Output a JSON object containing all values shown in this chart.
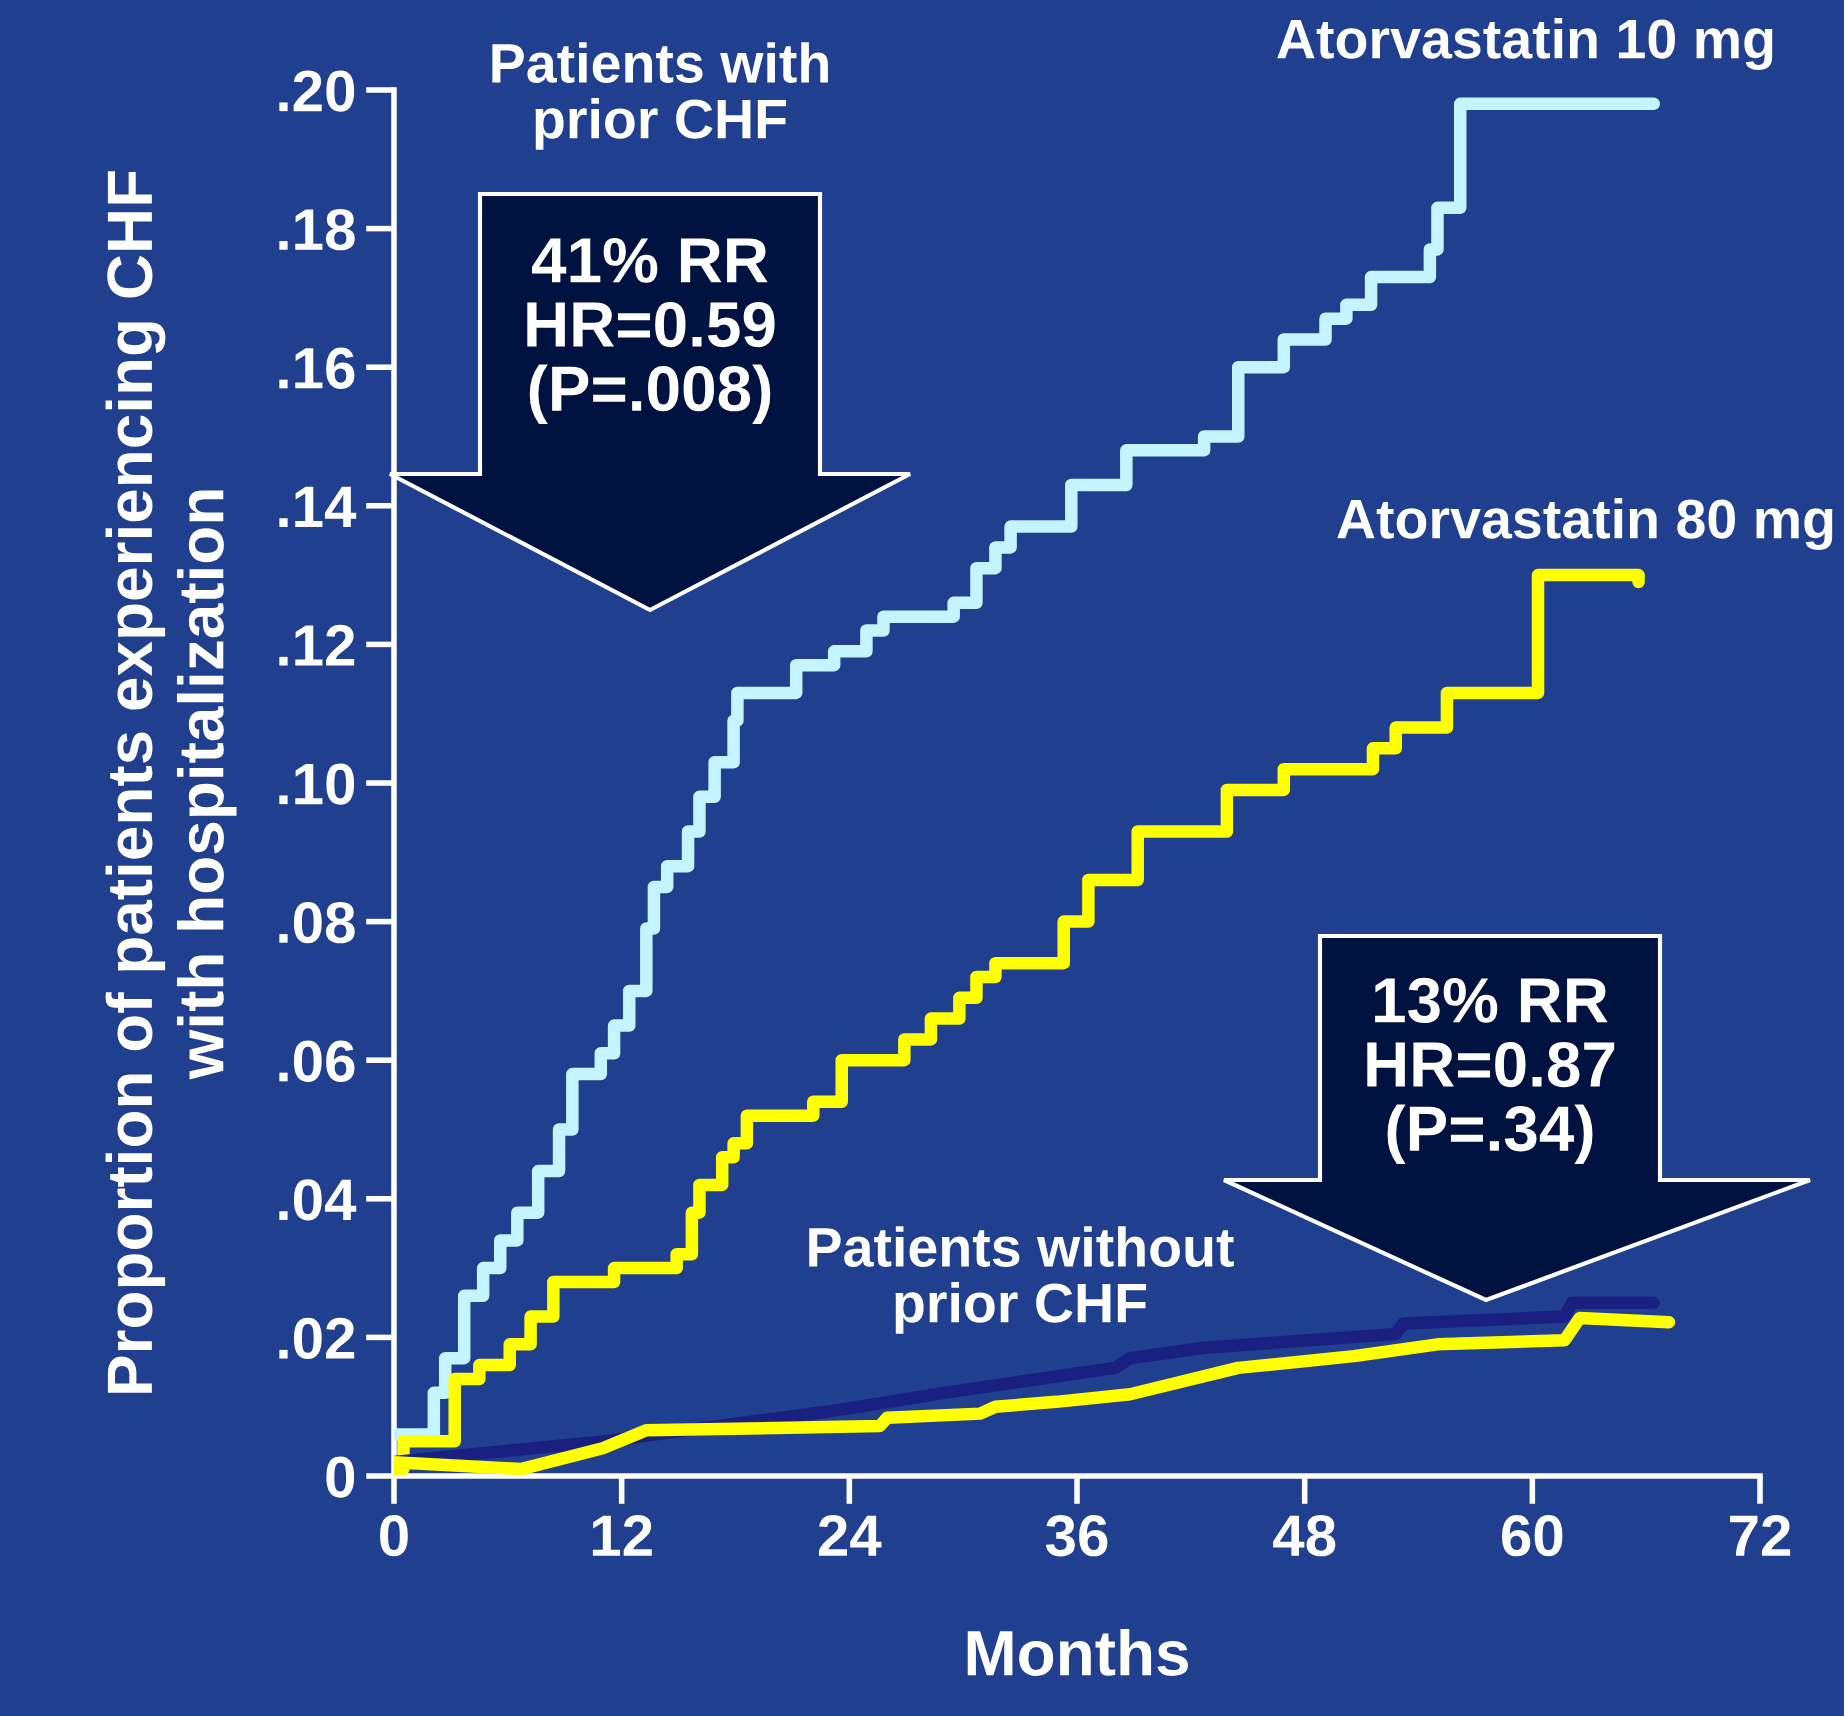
{
  "chart_data": {
    "type": "step",
    "xlabel": "Months",
    "ylabel": "Proportion of patients experiencing CHF\nwith hospitalization",
    "xlim": [
      0,
      72
    ],
    "xticks": [
      0,
      12,
      24,
      36,
      48,
      60,
      72
    ],
    "ylim": [
      0,
      0.2
    ],
    "yticks": [
      {
        "value": 0,
        "label": "0"
      },
      {
        "value": 0.02,
        "label": ".02"
      },
      {
        "value": 0.04,
        "label": ".04"
      },
      {
        "value": 0.06,
        "label": ".06"
      },
      {
        "value": 0.08,
        "label": ".08"
      },
      {
        "value": 0.1,
        "label": ".10"
      },
      {
        "value": 0.12,
        "label": ".12"
      },
      {
        "value": 0.14,
        "label": ".14"
      },
      {
        "value": 0.16,
        "label": ".16"
      },
      {
        "value": 0.18,
        "label": ".18"
      },
      {
        "value": 0.2,
        "label": ".20"
      }
    ],
    "grid": false,
    "legend": false,
    "series": [
      {
        "name": "Atorvastatin 10 mg",
        "color": "#c4f4ff",
        "x": [
          0,
          2.1,
          2.7,
          3.7,
          4.7,
          5.6,
          6.5,
          7.6,
          8.7,
          9.4,
          10.9,
          11.6,
          12.4,
          13.3,
          13.7,
          14.4,
          15.5,
          16.1,
          16.9,
          17.9,
          18.1,
          21.2,
          23.2,
          24.9,
          25.8,
          29.5,
          30.7,
          31.7,
          32.5,
          35.7,
          38.6,
          42.7,
          44.5,
          46.9,
          49.1,
          50.2,
          51.5,
          54.6,
          55.0,
          56.2,
          61.1,
          66.4
        ],
        "values": [
          0.006,
          0.012,
          0.017,
          0.026,
          0.03,
          0.034,
          0.038,
          0.044,
          0.05,
          0.058,
          0.061,
          0.065,
          0.07,
          0.079,
          0.085,
          0.088,
          0.093,
          0.098,
          0.103,
          0.109,
          0.113,
          0.117,
          0.119,
          0.122,
          0.124,
          0.126,
          0.131,
          0.134,
          0.137,
          0.143,
          0.148,
          0.15,
          0.16,
          0.164,
          0.167,
          0.169,
          0.173,
          0.177,
          0.183,
          0.198,
          0.198,
          0.198
        ]
      },
      {
        "name": "Atorvastatin 80 mg",
        "color": "#ffff00",
        "x": [
          0,
          0.5,
          3.2,
          4.5,
          6.1,
          7.2,
          8.4,
          11.6,
          14.9,
          15.7,
          16.1,
          17.3,
          17.9,
          18.6,
          22.1,
          23.6,
          26.9,
          28.3,
          29.8,
          30.7,
          31.7,
          35.3,
          36.6,
          39.2,
          43.9,
          46.9,
          51.6,
          52.8,
          55.5,
          60.3,
          65.6
        ],
        "values": [
          0.001,
          0.005,
          0.014,
          0.016,
          0.019,
          0.023,
          0.028,
          0.03,
          0.032,
          0.038,
          0.042,
          0.046,
          0.048,
          0.052,
          0.054,
          0.06,
          0.063,
          0.066,
          0.069,
          0.072,
          0.074,
          0.08,
          0.086,
          0.093,
          0.099,
          0.102,
          0.105,
          0.108,
          0.113,
          0.13,
          0.129
        ]
      },
      {
        "type": "line",
        "color": "#1a2080",
        "x": [
          0,
          11,
          23.4,
          29,
          38,
          38.8,
          42.7,
          52.8,
          53.2,
          61.7,
          62.1,
          66.4
        ],
        "values": [
          0.002,
          0.005,
          0.0095,
          0.012,
          0.0156,
          0.017,
          0.0185,
          0.0205,
          0.022,
          0.023,
          0.025,
          0.025
        ]
      },
      {
        "type": "line",
        "color": "#ffff00",
        "x": [
          0,
          6.7,
          11,
          13.3,
          25.6,
          26,
          30.9,
          31.7,
          34.9,
          38.8,
          44.5,
          50.6,
          55,
          61.7,
          62.5,
          67.2
        ],
        "values": [
          0.002,
          0.001,
          0.004,
          0.0066,
          0.0072,
          0.0084,
          0.009,
          0.01,
          0.0107,
          0.0118,
          0.0156,
          0.0173,
          0.019,
          0.0196,
          0.0228,
          0.0222
        ]
      }
    ],
    "annotations": [
      "Patients with\nprior CHF",
      "41% RR\nHR=0.59\n(P=.008)",
      "Patients without\nprior CHF",
      "13% RR\nHR=0.87\n(P=.34)"
    ]
  }
}
